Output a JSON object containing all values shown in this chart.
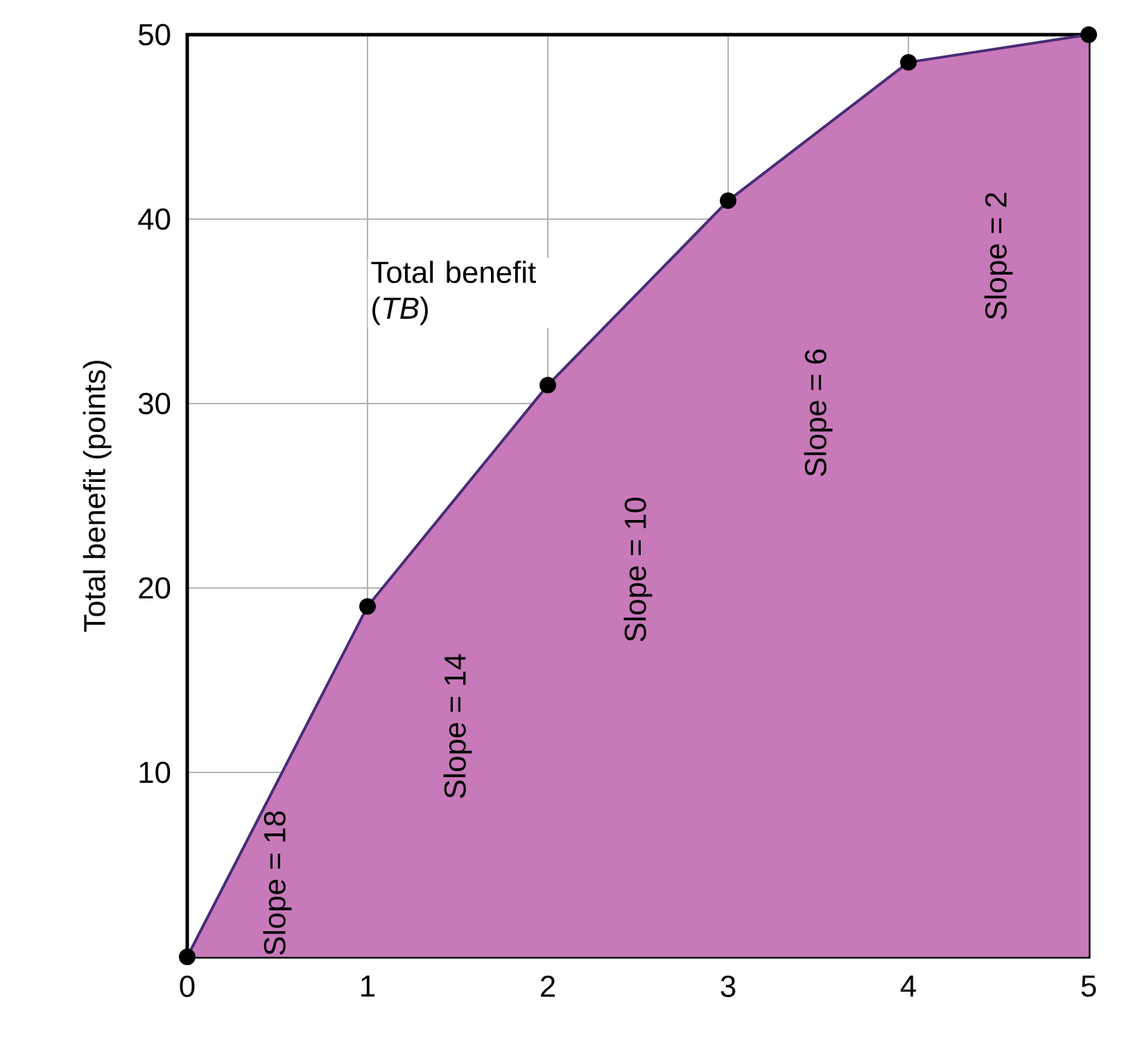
{
  "chart_data": {
    "type": "area",
    "ylabel": "Total benefit (points)",
    "x": [
      0,
      1,
      2,
      3,
      4,
      5
    ],
    "series": [
      {
        "color": "#c879b9",
        "values": [
          0,
          19,
          31,
          41,
          48.5,
          50
        ]
      }
    ],
    "xlim": [
      0,
      5
    ],
    "ylim": [
      0,
      50
    ],
    "xticks": [
      0,
      1,
      2,
      3,
      4,
      5
    ],
    "yticks": [
      10,
      20,
      30,
      40,
      50
    ],
    "grid": true,
    "marker": "circle",
    "line_style": "solid",
    "annotations": [
      "Total benefit (*TB*)",
      "Slope = 18",
      "Slope = 14",
      "Slope = 10",
      "Slope = 6",
      "Slope = 2"
    ]
  }
}
